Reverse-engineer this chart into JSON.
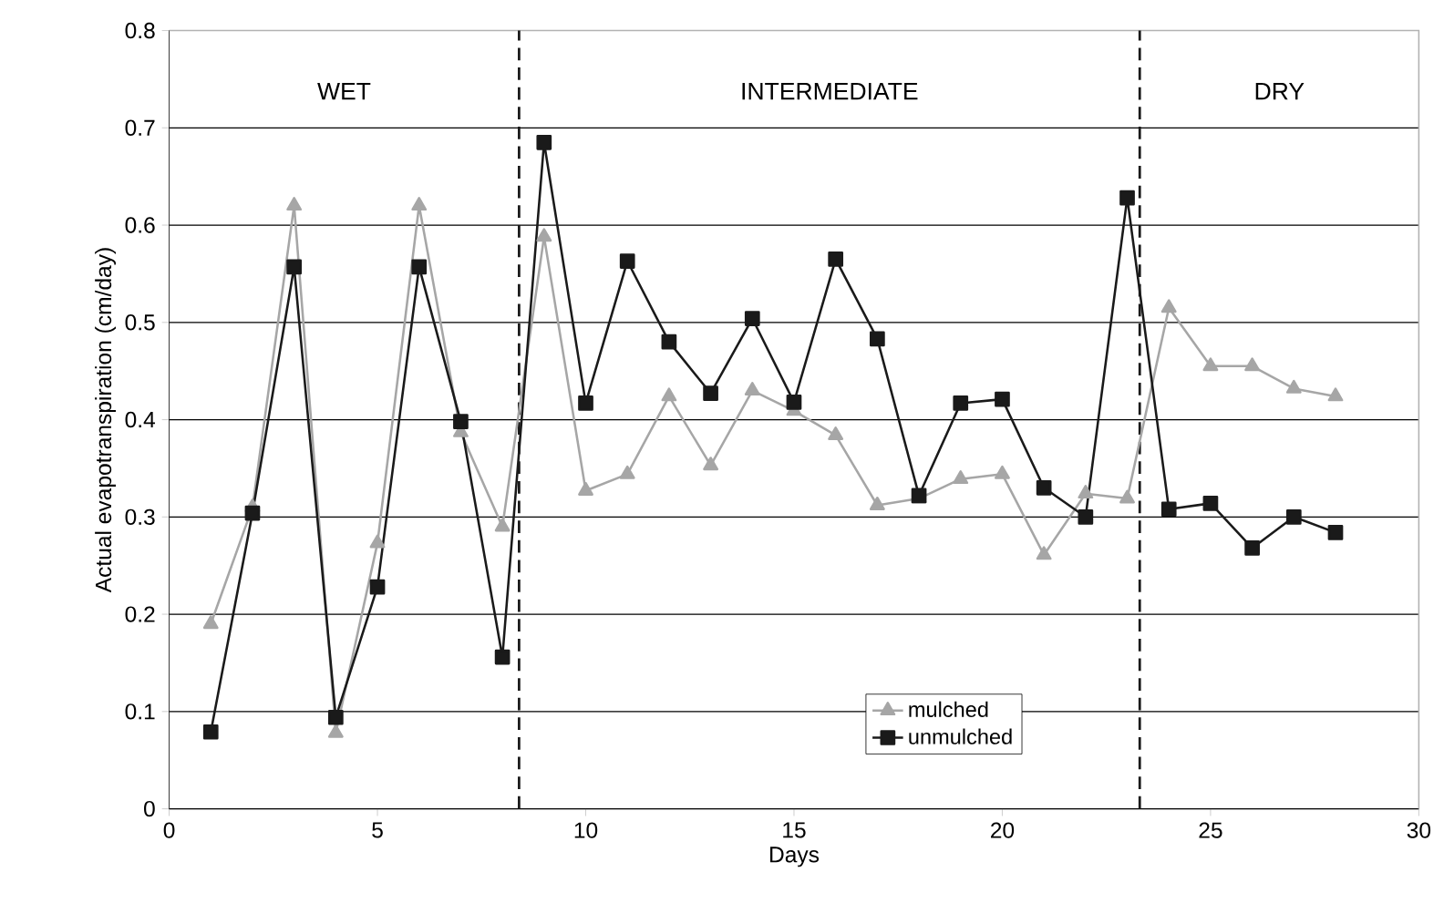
{
  "chart_data": {
    "type": "line",
    "xlabel": "Days",
    "ylabel": "Actual evapotranspiration (cm/day)",
    "x": [
      1,
      2,
      3,
      4,
      5,
      6,
      7,
      8,
      9,
      10,
      11,
      12,
      13,
      14,
      15,
      16,
      17,
      18,
      19,
      20,
      21,
      22,
      23,
      24,
      25,
      26,
      27,
      28
    ],
    "series": [
      {
        "name": "mulched",
        "color": "#a6a6a6",
        "marker": "triangle",
        "values": [
          0.19,
          0.31,
          0.62,
          0.078,
          0.273,
          0.62,
          0.387,
          0.29,
          0.588,
          0.327,
          0.344,
          0.424,
          0.353,
          0.43,
          0.409,
          0.384,
          0.312,
          0.319,
          0.339,
          0.344,
          0.261,
          0.324,
          0.319,
          0.515,
          0.455,
          0.455,
          0.432,
          0.424
        ]
      },
      {
        "name": "unmulched",
        "color": "#1a1a1a",
        "marker": "square",
        "values": [
          0.079,
          0.304,
          0.557,
          0.094,
          0.228,
          0.557,
          0.398,
          0.156,
          0.685,
          0.417,
          0.563,
          0.48,
          0.427,
          0.504,
          0.418,
          0.565,
          0.483,
          0.322,
          0.417,
          0.421,
          0.33,
          0.3,
          0.628,
          0.308,
          0.314,
          0.268,
          0.3,
          0.284
        ]
      }
    ],
    "xlim": [
      0,
      30
    ],
    "xticks": [
      0,
      5,
      10,
      15,
      20,
      25,
      30
    ],
    "ylim": [
      0,
      0.8
    ],
    "yticks": [
      0,
      0.1,
      0.2,
      0.3,
      0.4,
      0.5,
      0.6,
      0.7,
      0.8
    ],
    "grid": "y",
    "legend": "bottom",
    "line_style": "solid",
    "ref_lines": [
      {
        "axis": "x",
        "value": 8.4,
        "color": "#1a1a1a",
        "line_style": "dashed"
      },
      {
        "axis": "x",
        "value": 23.3,
        "color": "#1a1a1a",
        "line_style": "dashed"
      }
    ],
    "annotations": [
      "WET",
      "INTERMEDIATE",
      "DRY"
    ]
  }
}
